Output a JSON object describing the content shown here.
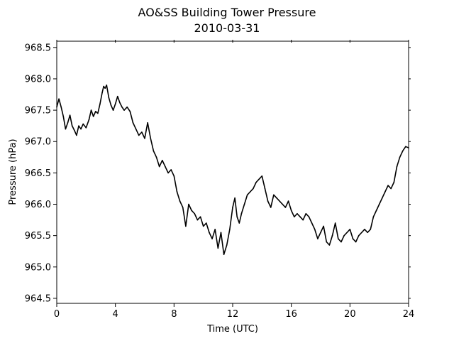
{
  "chart_data": {
    "type": "line",
    "title": "AO&SS Building Tower Pressure",
    "subtitle": "2010-03-31",
    "xlabel": "Time (UTC)",
    "ylabel": "Pressure (hPa)",
    "xlim": [
      0,
      24
    ],
    "ylim": [
      964.42,
      968.6
    ],
    "xticks": [
      0,
      4,
      8,
      12,
      16,
      20,
      24
    ],
    "xtick_labels": [
      "0",
      "4",
      "8",
      "12",
      "16",
      "20",
      "24"
    ],
    "yticks": [
      964.5,
      965.0,
      965.5,
      966.0,
      966.5,
      967.0,
      967.5,
      968.0,
      968.5
    ],
    "ytick_labels": [
      "964.5",
      "965.0",
      "965.5",
      "966.0",
      "966.5",
      "967.0",
      "967.5",
      "968.0",
      "968.5"
    ],
    "grid": false,
    "line_color": "#000000",
    "series": [
      {
        "x": [
          0.0,
          0.15,
          0.3,
          0.45,
          0.6,
          0.75,
          0.9,
          1.05,
          1.2,
          1.35,
          1.5,
          1.65,
          1.8,
          2.0,
          2.2,
          2.35,
          2.5,
          2.65,
          2.8,
          2.95,
          3.1,
          3.2,
          3.3,
          3.4,
          3.55,
          3.7,
          3.85,
          4.0,
          4.15,
          4.3,
          4.45,
          4.6,
          4.8,
          5.0,
          5.2,
          5.4,
          5.6,
          5.8,
          6.0,
          6.2,
          6.4,
          6.6,
          6.8,
          7.0,
          7.2,
          7.4,
          7.6,
          7.8,
          8.0,
          8.2,
          8.4,
          8.6,
          8.8,
          9.0,
          9.2,
          9.4,
          9.6,
          9.8,
          10.0,
          10.2,
          10.4,
          10.6,
          10.8,
          11.0,
          11.2,
          11.4,
          11.6,
          11.8,
          12.0,
          12.15,
          12.3,
          12.45,
          12.6,
          12.8,
          13.0,
          13.2,
          13.4,
          13.6,
          13.8,
          14.0,
          14.2,
          14.4,
          14.6,
          14.8,
          15.0,
          15.2,
          15.4,
          15.6,
          15.8,
          16.0,
          16.2,
          16.4,
          16.6,
          16.8,
          17.0,
          17.2,
          17.4,
          17.6,
          17.8,
          18.0,
          18.2,
          18.4,
          18.6,
          18.8,
          19.0,
          19.2,
          19.4,
          19.6,
          19.8,
          20.0,
          20.2,
          20.4,
          20.6,
          20.8,
          21.0,
          21.2,
          21.4,
          21.6,
          21.8,
          22.0,
          22.2,
          22.4,
          22.6,
          22.8,
          23.0,
          23.2,
          23.4,
          23.6,
          23.8,
          24.0
        ],
        "values": [
          967.55,
          967.68,
          967.55,
          967.4,
          967.2,
          967.3,
          967.42,
          967.25,
          967.18,
          967.1,
          967.25,
          967.2,
          967.28,
          967.22,
          967.35,
          967.5,
          967.4,
          967.48,
          967.45,
          967.6,
          967.78,
          967.88,
          967.85,
          967.9,
          967.7,
          967.58,
          967.5,
          967.6,
          967.72,
          967.62,
          967.55,
          967.5,
          967.55,
          967.48,
          967.3,
          967.2,
          967.1,
          967.15,
          967.05,
          967.3,
          967.05,
          966.85,
          966.75,
          966.6,
          966.7,
          966.6,
          966.5,
          966.55,
          966.45,
          966.2,
          966.05,
          965.95,
          965.65,
          966.0,
          965.9,
          965.85,
          965.75,
          965.8,
          965.65,
          965.7,
          965.55,
          965.45,
          965.6,
          965.3,
          965.55,
          965.2,
          965.35,
          965.6,
          965.95,
          966.1,
          965.8,
          965.7,
          965.85,
          966.0,
          966.15,
          966.2,
          966.25,
          966.35,
          966.4,
          966.45,
          966.25,
          966.05,
          965.95,
          966.15,
          966.1,
          966.05,
          966.0,
          965.95,
          966.05,
          965.9,
          965.8,
          965.85,
          965.8,
          965.75,
          965.85,
          965.8,
          965.7,
          965.6,
          965.45,
          965.55,
          965.65,
          965.4,
          965.35,
          965.5,
          965.7,
          965.45,
          965.4,
          965.5,
          965.55,
          965.6,
          965.45,
          965.4,
          965.5,
          965.55,
          965.6,
          965.55,
          965.6,
          965.8,
          965.9,
          966.0,
          966.1,
          966.2,
          966.3,
          966.25,
          966.35,
          966.6,
          966.75,
          966.85,
          966.92,
          966.9
        ]
      }
    ]
  }
}
